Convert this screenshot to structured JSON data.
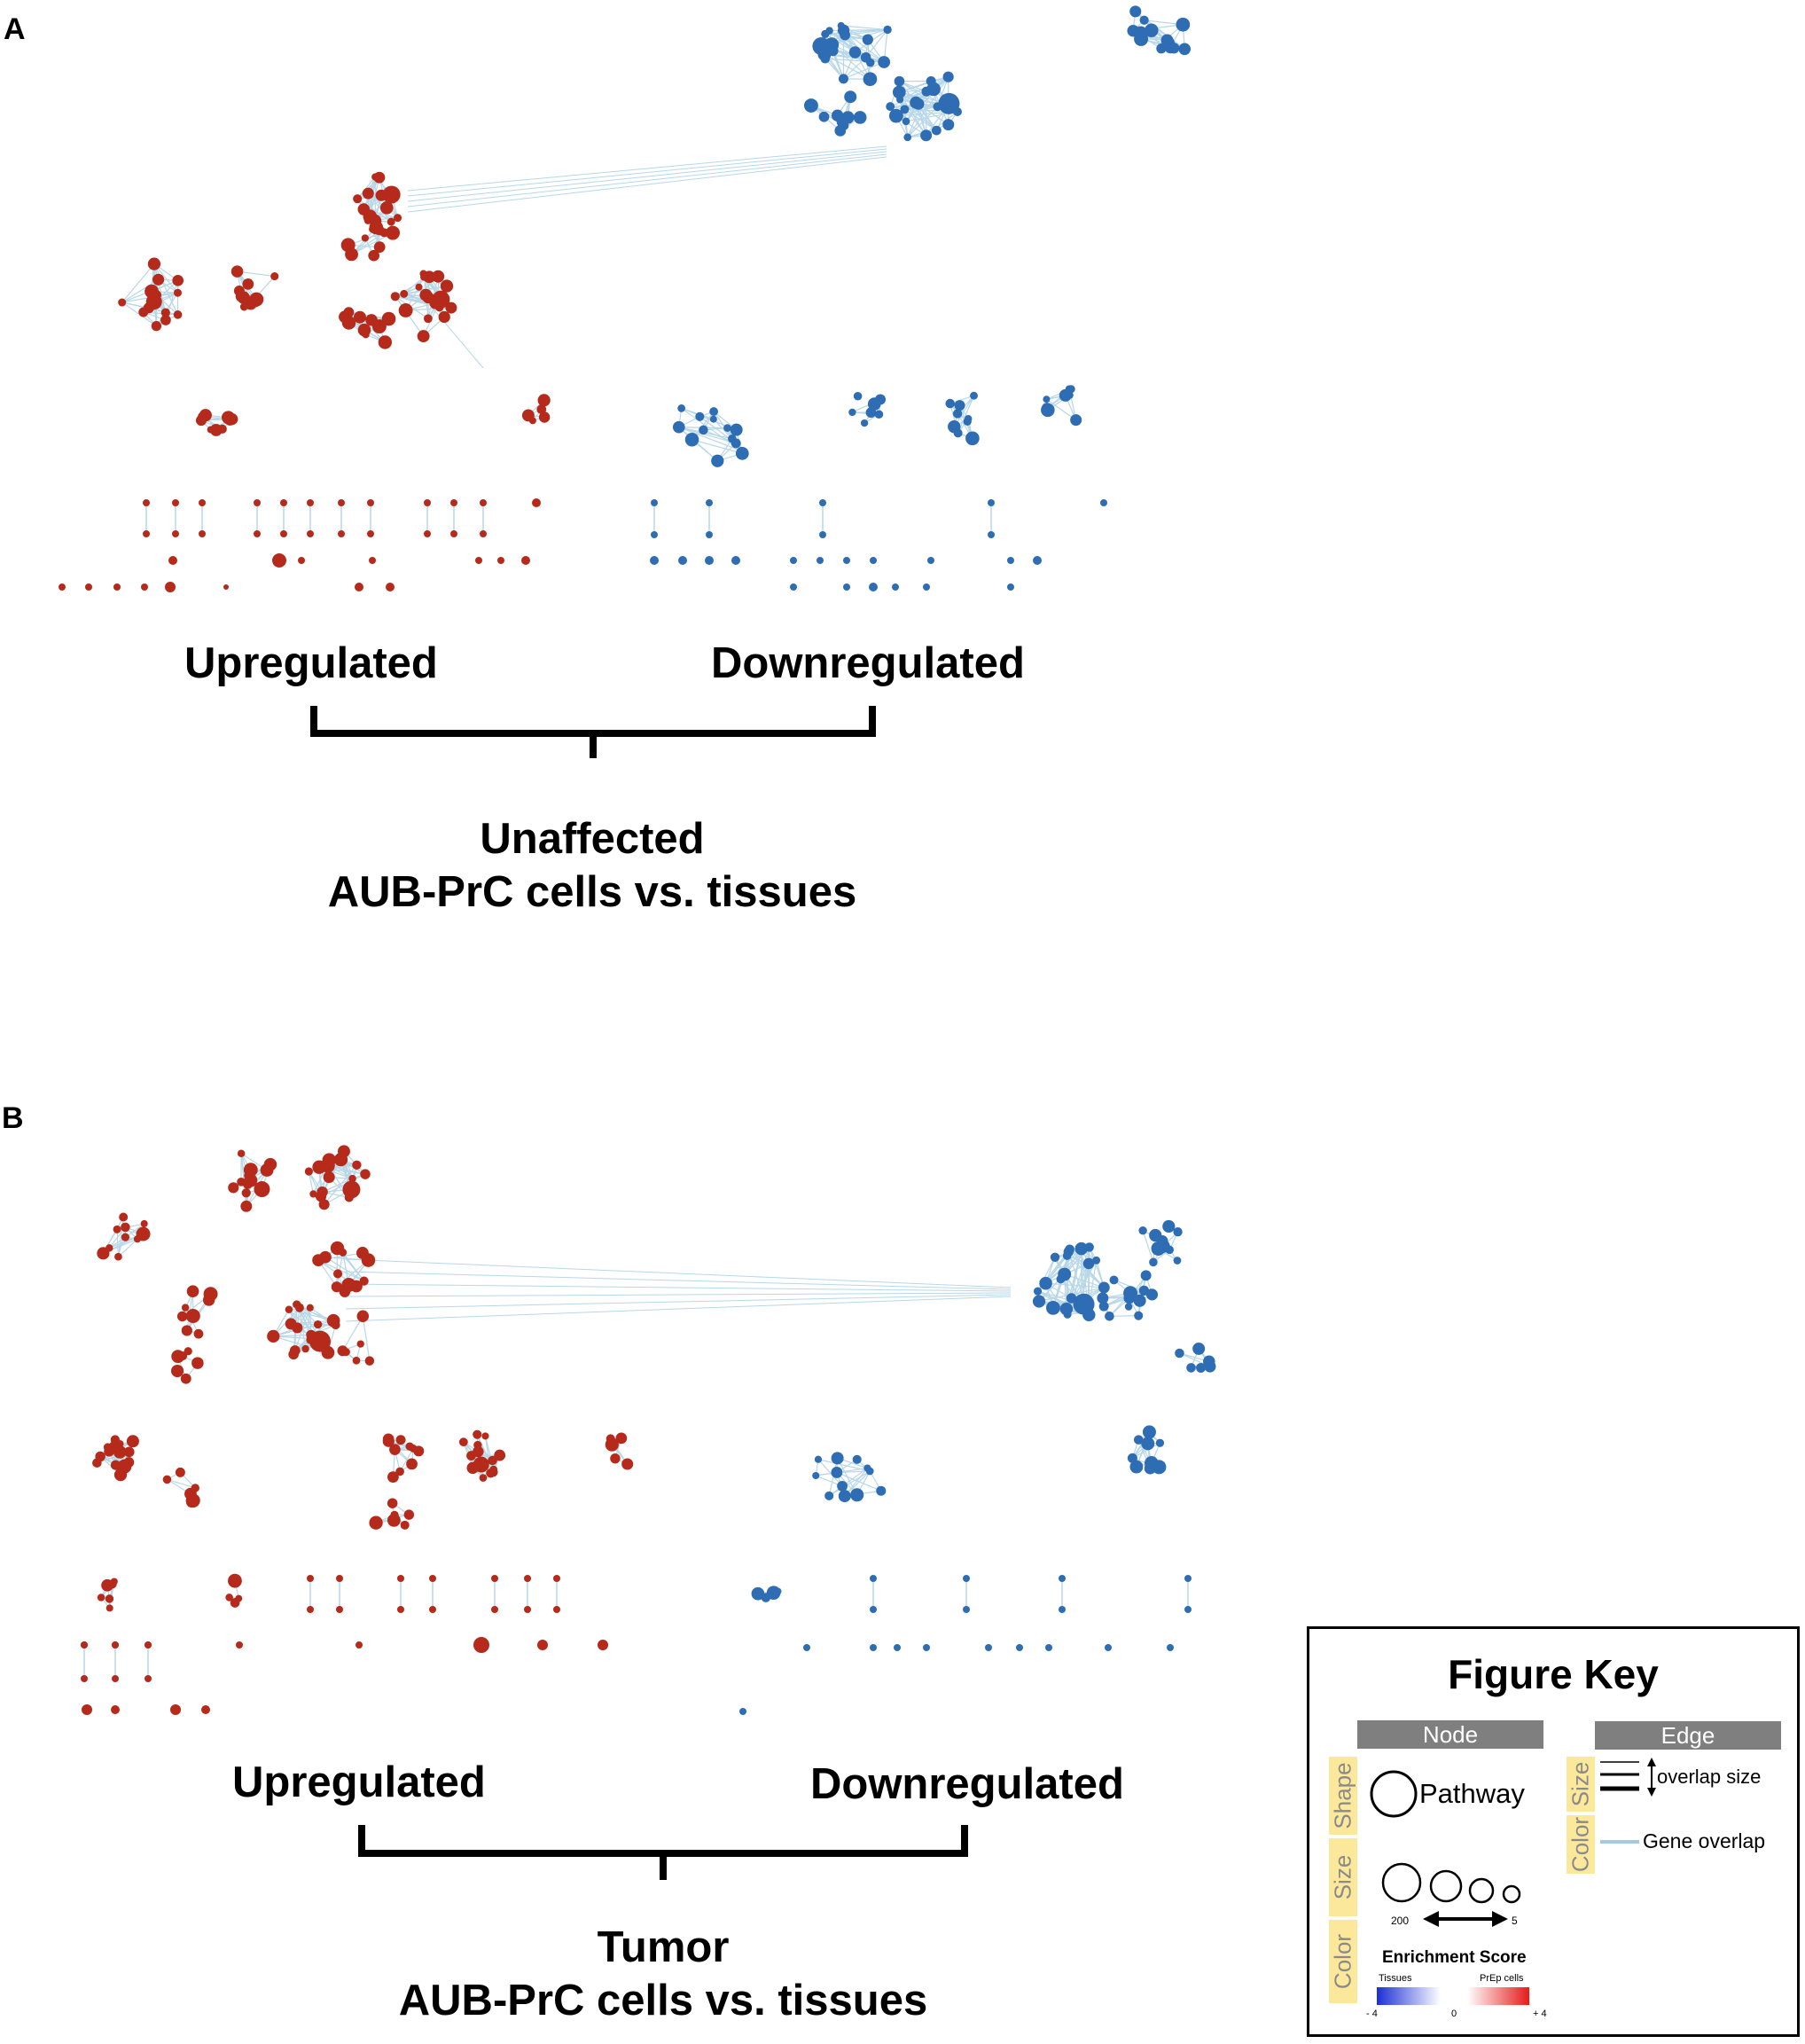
{
  "panel_a": {
    "letter": "A",
    "up_label": "Upregulated",
    "down_label": "Downregulated",
    "title_line1": "Unaffected",
    "title_line2": "AUB-PrC cells vs. tissues"
  },
  "panel_b": {
    "letter": "B",
    "up_label": "Upregulated",
    "down_label": "Downregulated",
    "title_line1": "Tumor",
    "title_line2": "AUB-PrC cells vs. tissues"
  },
  "figure_key": {
    "title": "Figure Key",
    "node_header": "Node",
    "edge_header": "Edge",
    "shape_tag": "Shape",
    "size_tag": "Size",
    "color_tag": "Color",
    "edge_size_tag": "Size",
    "edge_color_tag": "Color",
    "pathway_label": "Pathway",
    "size_max": "200",
    "size_min": "5",
    "enrichment_title": "Enrichment Score",
    "tissues_label": "Tissues",
    "prep_label": "PrEp cells",
    "scale_min": "- 4",
    "scale_mid": "0",
    "scale_max": "+ 4",
    "overlap_size_label": "overlap size",
    "gene_overlap_label": "Gene overlap"
  },
  "colors": {
    "upregulated_node": "#b52a1a",
    "downregulated_node": "#2e6db4",
    "edge": "#b7d7e8"
  }
}
